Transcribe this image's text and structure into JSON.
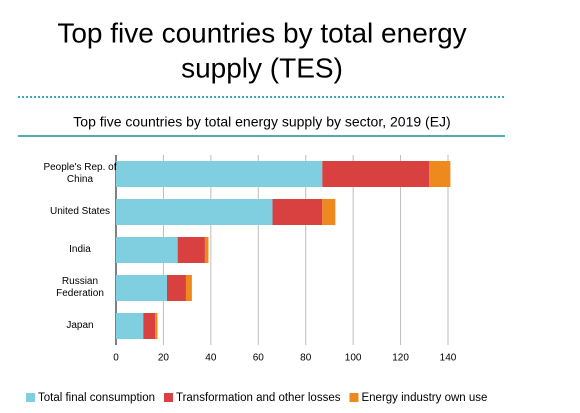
{
  "title_lines": [
    "Top five countries by total energy",
    "supply (TES)"
  ],
  "chart_data": {
    "type": "stacked_barh",
    "title": "Top five countries by total energy supply by sector, 2019 (EJ)",
    "categories": [
      "People's Rep. of China",
      "United States",
      "India",
      "Russian Federation",
      "Japan"
    ],
    "series": [
      {
        "name": "Total final consumption",
        "color": "#7fcfe1",
        "values": [
          87,
          66,
          26,
          21.5,
          11.5
        ]
      },
      {
        "name": "Transformation and other losses",
        "color": "#d8413f",
        "values": [
          45,
          21,
          11.5,
          8,
          5
        ]
      },
      {
        "name": "Energy industry own use",
        "color": "#ee8a1d",
        "values": [
          9,
          5.5,
          1.5,
          2.5,
          1
        ]
      }
    ],
    "xlim": [
      0,
      140
    ],
    "xticks": [
      0,
      20,
      40,
      60,
      80,
      100,
      120,
      140
    ],
    "grid": true
  }
}
